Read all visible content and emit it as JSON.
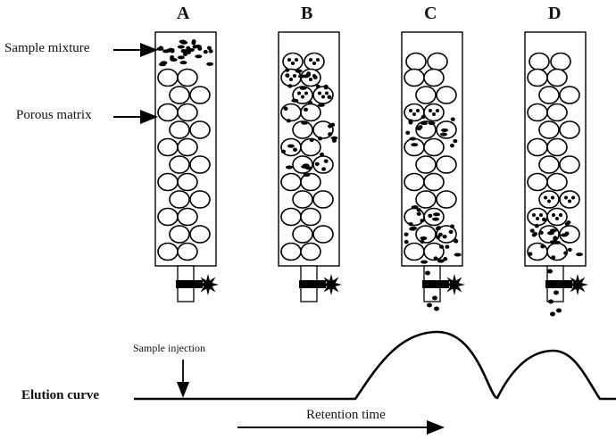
{
  "columns": [
    {
      "id": "A",
      "label": "A"
    },
    {
      "id": "B",
      "label": "B"
    },
    {
      "id": "C",
      "label": "C"
    },
    {
      "id": "D",
      "label": "D"
    }
  ],
  "labels": {
    "sample_mixture": "Sample mixture",
    "porous_matrix": "Porous matrix",
    "sample_injection": "Sample injection",
    "elution_curve": "Elution curve",
    "retention_time": "Retention time"
  },
  "colors": {
    "line": "#000000",
    "background": "#ffffff"
  }
}
